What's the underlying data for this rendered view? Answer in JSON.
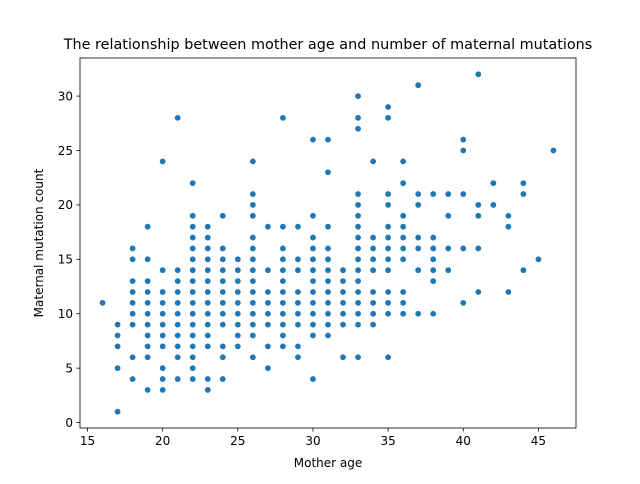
{
  "chart_data": {
    "type": "scatter",
    "title": "The relationship between mother age and number of maternal mutations",
    "xlabel": "Mother age",
    "ylabel": "Maternal mutation count",
    "xlim": [
      14.5,
      47.5
    ],
    "ylim": [
      -0.5,
      33.5
    ],
    "xticks": [
      15,
      20,
      25,
      30,
      35,
      40,
      45
    ],
    "yticks": [
      0,
      5,
      10,
      15,
      20,
      25,
      30
    ],
    "grid": false,
    "legend": "none",
    "marker_color": "#1f77b4",
    "points": [
      [
        16,
        11
      ],
      [
        17,
        1
      ],
      [
        17,
        5
      ],
      [
        17,
        7
      ],
      [
        17,
        8
      ],
      [
        17,
        9
      ],
      [
        18,
        4
      ],
      [
        18,
        6
      ],
      [
        18,
        9
      ],
      [
        18,
        10
      ],
      [
        18,
        11
      ],
      [
        18,
        12
      ],
      [
        18,
        13
      ],
      [
        18,
        15
      ],
      [
        18,
        16
      ],
      [
        19,
        3
      ],
      [
        19,
        6
      ],
      [
        19,
        7
      ],
      [
        19,
        8
      ],
      [
        19,
        9
      ],
      [
        19,
        10
      ],
      [
        19,
        11
      ],
      [
        19,
        12
      ],
      [
        19,
        13
      ],
      [
        19,
        15
      ],
      [
        19,
        18
      ],
      [
        20,
        3
      ],
      [
        20,
        4
      ],
      [
        20,
        5
      ],
      [
        20,
        7
      ],
      [
        20,
        8
      ],
      [
        20,
        9
      ],
      [
        20,
        10
      ],
      [
        20,
        11
      ],
      [
        20,
        12
      ],
      [
        20,
        14
      ],
      [
        20,
        24
      ],
      [
        21,
        4
      ],
      [
        21,
        6
      ],
      [
        21,
        7
      ],
      [
        21,
        8
      ],
      [
        21,
        9
      ],
      [
        21,
        10
      ],
      [
        21,
        11
      ],
      [
        21,
        12
      ],
      [
        21,
        13
      ],
      [
        21,
        14
      ],
      [
        21,
        28
      ],
      [
        22,
        4
      ],
      [
        22,
        5
      ],
      [
        22,
        6
      ],
      [
        22,
        7
      ],
      [
        22,
        8
      ],
      [
        22,
        9
      ],
      [
        22,
        10
      ],
      [
        22,
        11
      ],
      [
        22,
        12
      ],
      [
        22,
        13
      ],
      [
        22,
        14
      ],
      [
        22,
        15
      ],
      [
        22,
        16
      ],
      [
        22,
        17
      ],
      [
        22,
        18
      ],
      [
        22,
        19
      ],
      [
        22,
        22
      ],
      [
        23,
        3
      ],
      [
        23,
        4
      ],
      [
        23,
        7
      ],
      [
        23,
        8
      ],
      [
        23,
        9
      ],
      [
        23,
        10
      ],
      [
        23,
        11
      ],
      [
        23,
        12
      ],
      [
        23,
        13
      ],
      [
        23,
        14
      ],
      [
        23,
        15
      ],
      [
        23,
        16
      ],
      [
        23,
        17
      ],
      [
        23,
        18
      ],
      [
        24,
        4
      ],
      [
        24,
        6
      ],
      [
        24,
        7
      ],
      [
        24,
        9
      ],
      [
        24,
        10
      ],
      [
        24,
        11
      ],
      [
        24,
        12
      ],
      [
        24,
        13
      ],
      [
        24,
        14
      ],
      [
        24,
        15
      ],
      [
        24,
        16
      ],
      [
        24,
        19
      ],
      [
        25,
        7
      ],
      [
        25,
        8
      ],
      [
        25,
        9
      ],
      [
        25,
        10
      ],
      [
        25,
        11
      ],
      [
        25,
        12
      ],
      [
        25,
        13
      ],
      [
        25,
        14
      ],
      [
        25,
        15
      ],
      [
        26,
        6
      ],
      [
        26,
        8
      ],
      [
        26,
        9
      ],
      [
        26,
        10
      ],
      [
        26,
        11
      ],
      [
        26,
        12
      ],
      [
        26,
        13
      ],
      [
        26,
        14
      ],
      [
        26,
        15
      ],
      [
        26,
        16
      ],
      [
        26,
        17
      ],
      [
        26,
        19
      ],
      [
        26,
        20
      ],
      [
        26,
        21
      ],
      [
        26,
        24
      ],
      [
        27,
        5
      ],
      [
        27,
        7
      ],
      [
        27,
        9
      ],
      [
        27,
        10
      ],
      [
        27,
        11
      ],
      [
        27,
        12
      ],
      [
        27,
        14
      ],
      [
        27,
        18
      ],
      [
        28,
        7
      ],
      [
        28,
        8
      ],
      [
        28,
        9
      ],
      [
        28,
        10
      ],
      [
        28,
        11
      ],
      [
        28,
        12
      ],
      [
        28,
        13
      ],
      [
        28,
        14
      ],
      [
        28,
        15
      ],
      [
        28,
        16
      ],
      [
        28,
        18
      ],
      [
        28,
        28
      ],
      [
        29,
        6
      ],
      [
        29,
        7
      ],
      [
        29,
        9
      ],
      [
        29,
        10
      ],
      [
        29,
        11
      ],
      [
        29,
        12
      ],
      [
        29,
        14
      ],
      [
        29,
        15
      ],
      [
        29,
        18
      ],
      [
        30,
        4
      ],
      [
        30,
        8
      ],
      [
        30,
        9
      ],
      [
        30,
        10
      ],
      [
        30,
        11
      ],
      [
        30,
        12
      ],
      [
        30,
        13
      ],
      [
        30,
        14
      ],
      [
        30,
        15
      ],
      [
        30,
        16
      ],
      [
        30,
        17
      ],
      [
        30,
        19
      ],
      [
        30,
        26
      ],
      [
        31,
        8
      ],
      [
        31,
        9
      ],
      [
        31,
        10
      ],
      [
        31,
        11
      ],
      [
        31,
        12
      ],
      [
        31,
        13
      ],
      [
        31,
        14
      ],
      [
        31,
        15
      ],
      [
        31,
        16
      ],
      [
        31,
        18
      ],
      [
        31,
        23
      ],
      [
        31,
        26
      ],
      [
        32,
        6
      ],
      [
        32,
        9
      ],
      [
        32,
        10
      ],
      [
        32,
        11
      ],
      [
        32,
        12
      ],
      [
        32,
        13
      ],
      [
        32,
        14
      ],
      [
        33,
        6
      ],
      [
        33,
        9
      ],
      [
        33,
        10
      ],
      [
        33,
        11
      ],
      [
        33,
        12
      ],
      [
        33,
        13
      ],
      [
        33,
        14
      ],
      [
        33,
        15
      ],
      [
        33,
        16
      ],
      [
        33,
        17
      ],
      [
        33,
        18
      ],
      [
        33,
        19
      ],
      [
        33,
        20
      ],
      [
        33,
        21
      ],
      [
        33,
        27
      ],
      [
        33,
        28
      ],
      [
        33,
        30
      ],
      [
        34,
        9
      ],
      [
        34,
        10
      ],
      [
        34,
        11
      ],
      [
        34,
        12
      ],
      [
        34,
        14
      ],
      [
        34,
        15
      ],
      [
        34,
        16
      ],
      [
        34,
        17
      ],
      [
        34,
        24
      ],
      [
        35,
        6
      ],
      [
        35,
        10
      ],
      [
        35,
        11
      ],
      [
        35,
        12
      ],
      [
        35,
        14
      ],
      [
        35,
        15
      ],
      [
        35,
        16
      ],
      [
        35,
        17
      ],
      [
        35,
        18
      ],
      [
        35,
        20
      ],
      [
        35,
        21
      ],
      [
        35,
        28
      ],
      [
        35,
        29
      ],
      [
        36,
        10
      ],
      [
        36,
        11
      ],
      [
        36,
        12
      ],
      [
        36,
        15
      ],
      [
        36,
        16
      ],
      [
        36,
        17
      ],
      [
        36,
        18
      ],
      [
        36,
        19
      ],
      [
        36,
        22
      ],
      [
        36,
        24
      ],
      [
        37,
        10
      ],
      [
        37,
        14
      ],
      [
        37,
        16
      ],
      [
        37,
        17
      ],
      [
        37,
        20
      ],
      [
        37,
        21
      ],
      [
        37,
        31
      ],
      [
        38,
        10
      ],
      [
        38,
        13
      ],
      [
        38,
        14
      ],
      [
        38,
        15
      ],
      [
        38,
        16
      ],
      [
        38,
        17
      ],
      [
        38,
        21
      ],
      [
        39,
        14
      ],
      [
        39,
        16
      ],
      [
        39,
        19
      ],
      [
        39,
        21
      ],
      [
        40,
        11
      ],
      [
        40,
        16
      ],
      [
        40,
        21
      ],
      [
        40,
        25
      ],
      [
        40,
        26
      ],
      [
        41,
        12
      ],
      [
        41,
        16
      ],
      [
        41,
        19
      ],
      [
        41,
        20
      ],
      [
        41,
        32
      ],
      [
        42,
        20
      ],
      [
        42,
        22
      ],
      [
        43,
        12
      ],
      [
        43,
        18
      ],
      [
        43,
        19
      ],
      [
        44,
        14
      ],
      [
        44,
        21
      ],
      [
        44,
        22
      ],
      [
        45,
        15
      ],
      [
        46,
        25
      ]
    ]
  }
}
